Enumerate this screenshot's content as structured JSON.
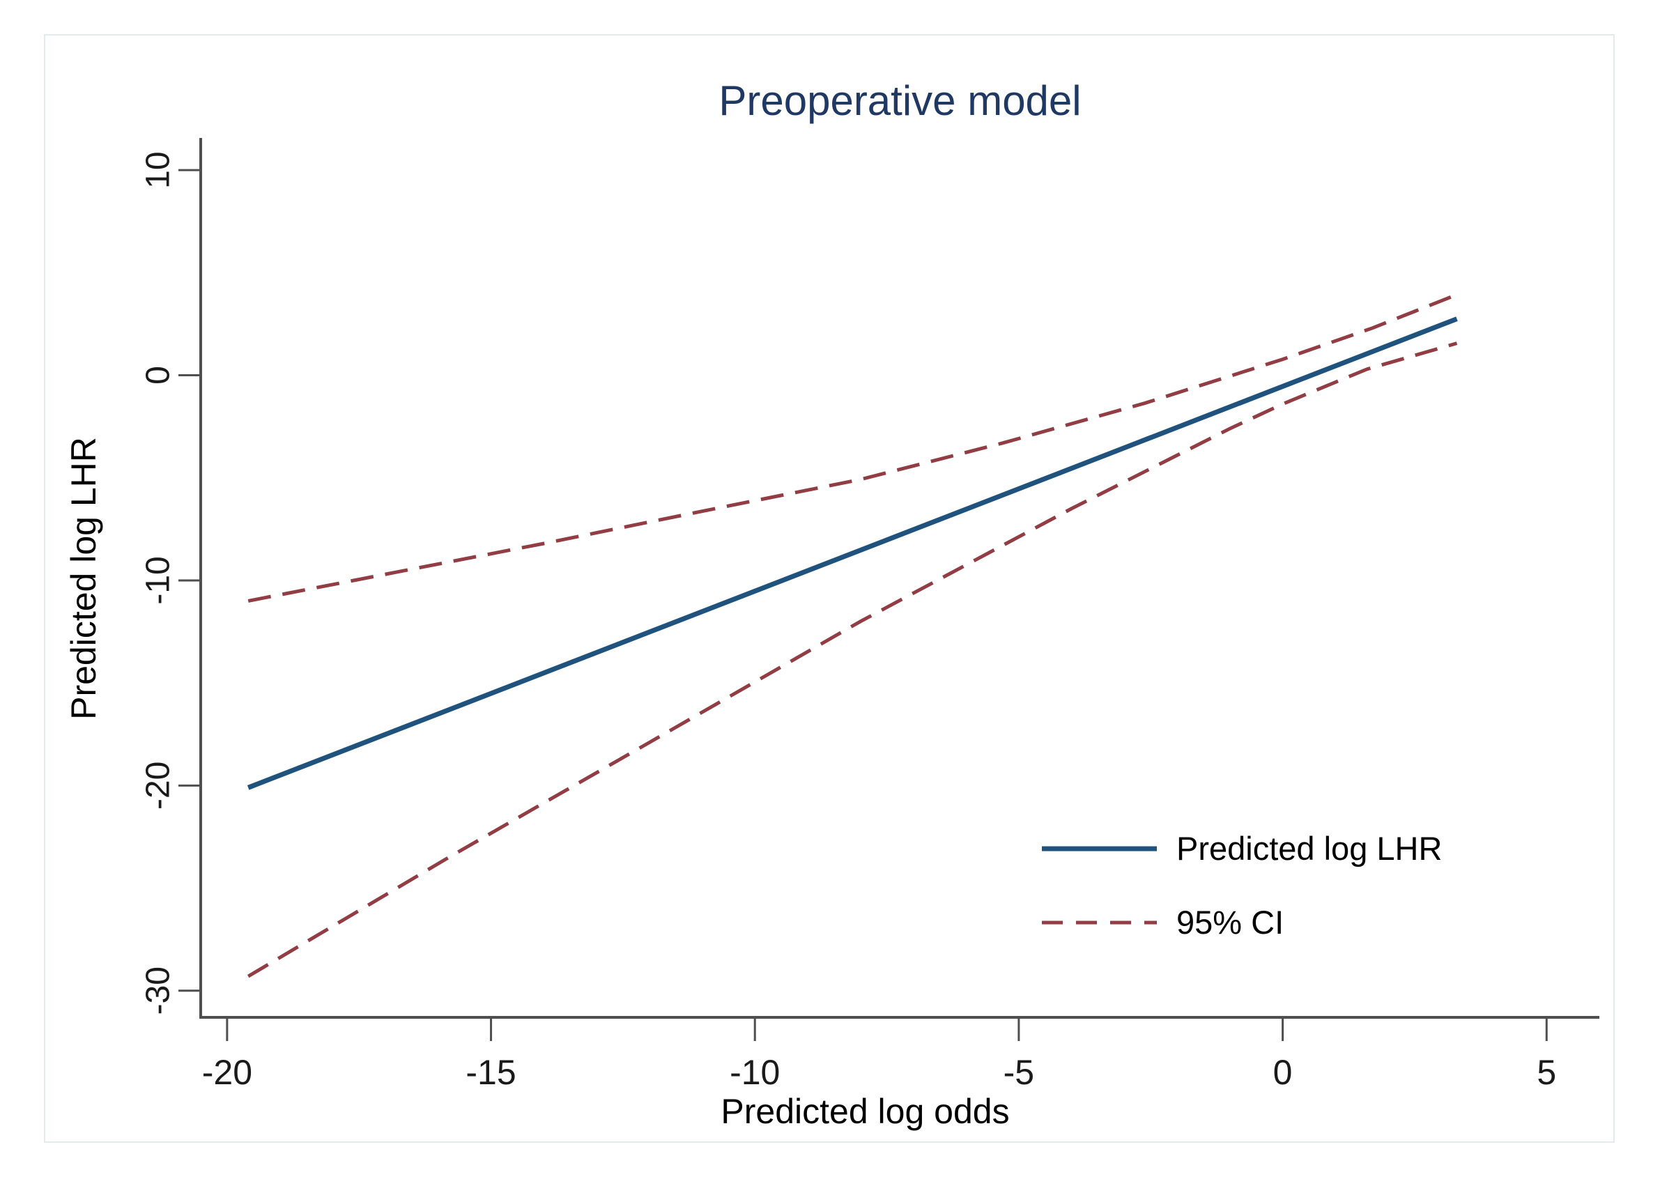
{
  "figure": {
    "title": "Preoperative model",
    "background_color": "#ffffff",
    "frame_border_color": "#e3ebeb",
    "title_color": "#1f3864",
    "axis_color": "#4f4f4f",
    "tick_text_color": "#1a1a1a"
  },
  "chart_data": {
    "type": "line",
    "title": "Preoperative model",
    "xlabel": "Predicted log odds",
    "ylabel": "Predicted log LHR",
    "xlim": [
      -20.5,
      6.0
    ],
    "ylim": [
      -31.3,
      11.5
    ],
    "x_ticks": [
      -20,
      -15,
      -10,
      -5,
      0,
      5
    ],
    "y_ticks": [
      10,
      0,
      -10,
      -20,
      -30
    ],
    "grid": false,
    "legend_position": "inside lower right",
    "series": [
      {
        "name": "Predicted log LHR",
        "line_style": "solid",
        "color": "#1f537d",
        "stroke_width": 7,
        "points": [
          [
            -19.6,
            -20.1
          ],
          [
            3.3,
            2.75
          ]
        ]
      },
      {
        "name": "95% CI",
        "role": "upper confidence limit",
        "line_style": "dashed",
        "color": "#923c44",
        "stroke_width": 5,
        "points": [
          [
            -19.6,
            -11.0
          ],
          [
            -16.8,
            -9.6
          ],
          [
            -14,
            -8.2
          ],
          [
            -11,
            -6.63
          ],
          [
            -8,
            -5.08
          ],
          [
            -5.3,
            -3.3
          ],
          [
            -2.6,
            -1.35
          ],
          [
            0,
            0.78
          ],
          [
            1.7,
            2.3
          ],
          [
            3.3,
            3.93
          ]
        ]
      },
      {
        "name": "95% CI",
        "role": "lower confidence limit",
        "line_style": "dashed",
        "color": "#923c44",
        "stroke_width": 5,
        "points": [
          [
            -19.6,
            -29.3
          ],
          [
            -15.8,
            -23.5
          ],
          [
            -12,
            -17.9
          ],
          [
            -8,
            -12.0
          ],
          [
            -4,
            -6.5
          ],
          [
            -1,
            -2.6
          ],
          [
            0,
            -1.4
          ],
          [
            1.6,
            0.3
          ],
          [
            3.3,
            1.56
          ]
        ]
      }
    ]
  },
  "legend": {
    "items": [
      {
        "label": "Predicted log LHR",
        "style": "solid",
        "color": "#1f537d"
      },
      {
        "label": "95% CI",
        "style": "dashed",
        "color": "#923c44"
      }
    ]
  }
}
